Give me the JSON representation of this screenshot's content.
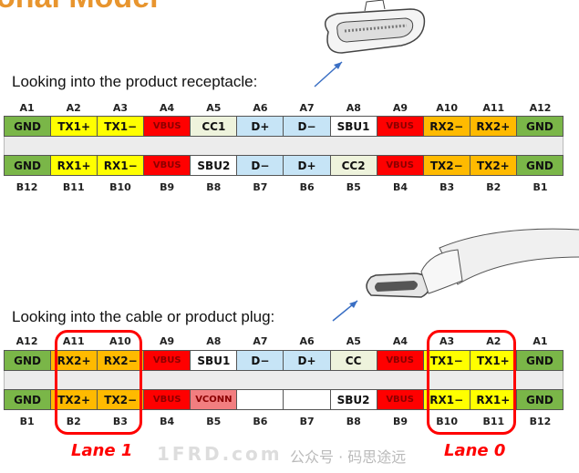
{
  "title": "onal Model",
  "receptacle": {
    "caption": "Looking into the product receptacle:",
    "top_pins": [
      "A1",
      "A2",
      "A3",
      "A4",
      "A5",
      "A6",
      "A7",
      "A8",
      "A9",
      "A10",
      "A11",
      "A12"
    ],
    "row_a": [
      [
        "GND",
        "green"
      ],
      [
        "TX1+",
        "yellow"
      ],
      [
        "TX1−",
        "yellow"
      ],
      [
        "VBUS",
        "red"
      ],
      [
        "CC1",
        "cream"
      ],
      [
        "D+",
        "blue"
      ],
      [
        "D−",
        "blue"
      ],
      [
        "SBU1",
        "white"
      ],
      [
        "VBUS",
        "red"
      ],
      [
        "RX2−",
        "orange"
      ],
      [
        "RX2+",
        "orange"
      ],
      [
        "GND",
        "green"
      ]
    ],
    "row_b": [
      [
        "GND",
        "green"
      ],
      [
        "RX1+",
        "yellow"
      ],
      [
        "RX1−",
        "yellow"
      ],
      [
        "VBUS",
        "red"
      ],
      [
        "SBU2",
        "white"
      ],
      [
        "D−",
        "blue"
      ],
      [
        "D+",
        "blue"
      ],
      [
        "CC2",
        "cream"
      ],
      [
        "VBUS",
        "red"
      ],
      [
        "TX2−",
        "orange"
      ],
      [
        "TX2+",
        "orange"
      ],
      [
        "GND",
        "green"
      ]
    ],
    "bottom_pins": [
      "B12",
      "B11",
      "B10",
      "B9",
      "B8",
      "B7",
      "B6",
      "B5",
      "B4",
      "B3",
      "B2",
      "B1"
    ]
  },
  "plug": {
    "caption": "Looking into the cable or product plug:",
    "top_pins": [
      "A12",
      "A11",
      "A10",
      "A9",
      "A8",
      "A7",
      "A6",
      "A5",
      "A4",
      "A3",
      "A2",
      "A1"
    ],
    "row_a": [
      [
        "GND",
        "green"
      ],
      [
        "RX2+",
        "orange"
      ],
      [
        "RX2−",
        "orange"
      ],
      [
        "VBUS",
        "red"
      ],
      [
        "SBU1",
        "white"
      ],
      [
        "D−",
        "blue"
      ],
      [
        "D+",
        "blue"
      ],
      [
        "CC",
        "cream"
      ],
      [
        "VBUS",
        "red"
      ],
      [
        "TX1−",
        "yellow"
      ],
      [
        "TX1+",
        "yellow"
      ],
      [
        "GND",
        "green"
      ]
    ],
    "row_b": [
      [
        "GND",
        "green"
      ],
      [
        "TX2+",
        "orange"
      ],
      [
        "TX2−",
        "orange"
      ],
      [
        "VBUS",
        "red"
      ],
      [
        "VCONN",
        "pink"
      ],
      [
        "",
        "white"
      ],
      [
        "",
        "white"
      ],
      [
        "SBU2",
        "white"
      ],
      [
        "VBUS",
        "red"
      ],
      [
        "RX1−",
        "yellow"
      ],
      [
        "RX1+",
        "yellow"
      ],
      [
        "GND",
        "green"
      ]
    ],
    "bottom_pins": [
      "B1",
      "B2",
      "B3",
      "B4",
      "B5",
      "B6",
      "B7",
      "B8",
      "B9",
      "B10",
      "B11",
      "B12"
    ],
    "lane1": "Lane 1",
    "lane0": "Lane 0"
  },
  "watermark": "公众号 · 码思途远",
  "watermark2": "1FRD.com",
  "colors": {
    "green": "#7ab648",
    "yellow": "#ffff00",
    "red": "#ff0000",
    "cream": "#eef3dc",
    "blue": "#c6e4f6",
    "white": "#ffffff",
    "orange": "#ffba00",
    "pink": "#f27e80",
    "lane_outline": "#ff0000",
    "title": "#e8952e"
  }
}
